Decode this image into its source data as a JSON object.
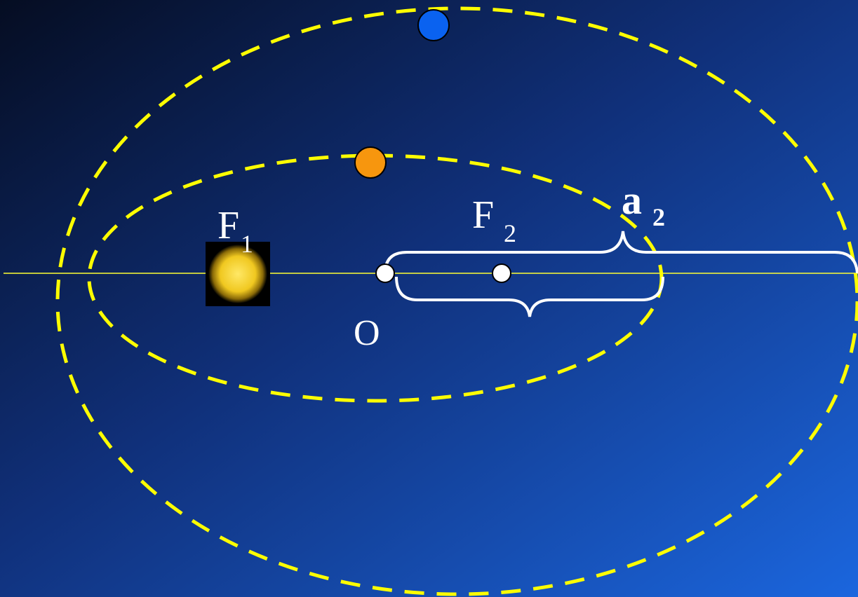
{
  "labels": [
    {
      "main": "F",
      "sub": "1"
    },
    {
      "main": "F",
      "sub": "2"
    },
    {
      "main": "a",
      "sub": "2"
    },
    {
      "main": "O"
    }
  ]
}
